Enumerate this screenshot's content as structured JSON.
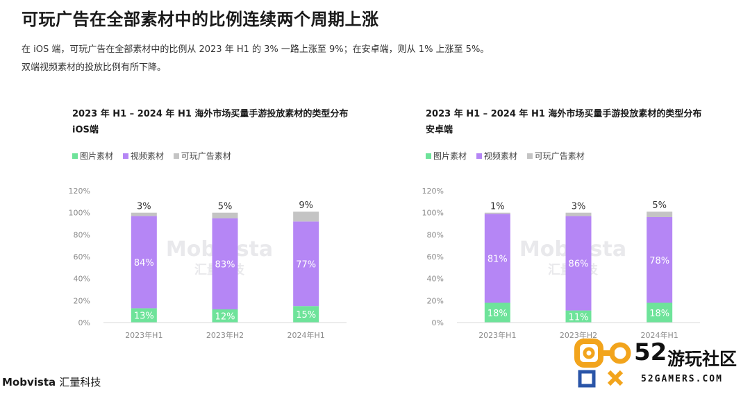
{
  "header": {
    "title": "可玩广告在全部素材中的比例连续两个周期上涨",
    "subtitle_line1": "在 iOS 端，可玩广告在全部素材中的比例从 2023 年 H1 的 3% 一路上涨至 9%；在安卓端，则从 1% 上涨至 5%。",
    "subtitle_line2": "双端视频素材的投放比例有所下降。"
  },
  "legend": {
    "items": [
      {
        "label": "图片素材",
        "color": "#6ee39a"
      },
      {
        "label": "视频素材",
        "color": "#b586f5"
      },
      {
        "label": "可玩广告素材",
        "color": "#c4c4c4"
      }
    ]
  },
  "colors": {
    "image": "#6ee39a",
    "video": "#b586f5",
    "playable": "#c4c4c4",
    "axis_text": "#8a8a8a",
    "watermark": "#e9e9ec",
    "badge_orange": "#f2a41c",
    "badge_blue": "#2a55a8"
  },
  "footer": {
    "brand": "Mobvista",
    "brand_cn": "汇量科技"
  },
  "site_badge": {
    "number": "52",
    "name": "游玩社区",
    "url": "52GAMERS.COM"
  },
  "chart_data": [
    {
      "type": "bar",
      "stacked": true,
      "title": "2023 年 H1 – 2024 年 H1 海外市场买量手游投放素材的类型分布",
      "subtitle": "iOS端",
      "categories": [
        "2023年H1",
        "2023年H2",
        "2024年H1"
      ],
      "series": [
        {
          "name": "图片素材",
          "values": [
            13,
            12,
            15
          ]
        },
        {
          "name": "视频素材",
          "values": [
            84,
            83,
            77
          ]
        },
        {
          "name": "可玩广告素材",
          "values": [
            3,
            5,
            9
          ]
        }
      ],
      "y_ticks": [
        "0%",
        "20%",
        "40%",
        "60%",
        "80%",
        "100%",
        "120%"
      ],
      "ylim": [
        0,
        120
      ],
      "watermark": {
        "brand": "Mobvista",
        "cn": "汇量科技"
      }
    },
    {
      "type": "bar",
      "stacked": true,
      "title": "2023 年 H1 – 2024 年 H1 海外市场买量手游投放素材的类型分布",
      "subtitle": "安卓端",
      "categories": [
        "2023年H1",
        "2023年H2",
        "2024年H1"
      ],
      "series": [
        {
          "name": "图片素材",
          "values": [
            18,
            11,
            18
          ]
        },
        {
          "name": "视频素材",
          "values": [
            81,
            86,
            78
          ]
        },
        {
          "name": "可玩广告素材",
          "values": [
            1,
            3,
            5
          ]
        }
      ],
      "y_ticks": [
        "0%",
        "20%",
        "40%",
        "60%",
        "80%",
        "100%",
        "120%"
      ],
      "ylim": [
        0,
        120
      ],
      "watermark": {
        "brand": "Mobvista",
        "cn": "汇量科技"
      }
    }
  ]
}
